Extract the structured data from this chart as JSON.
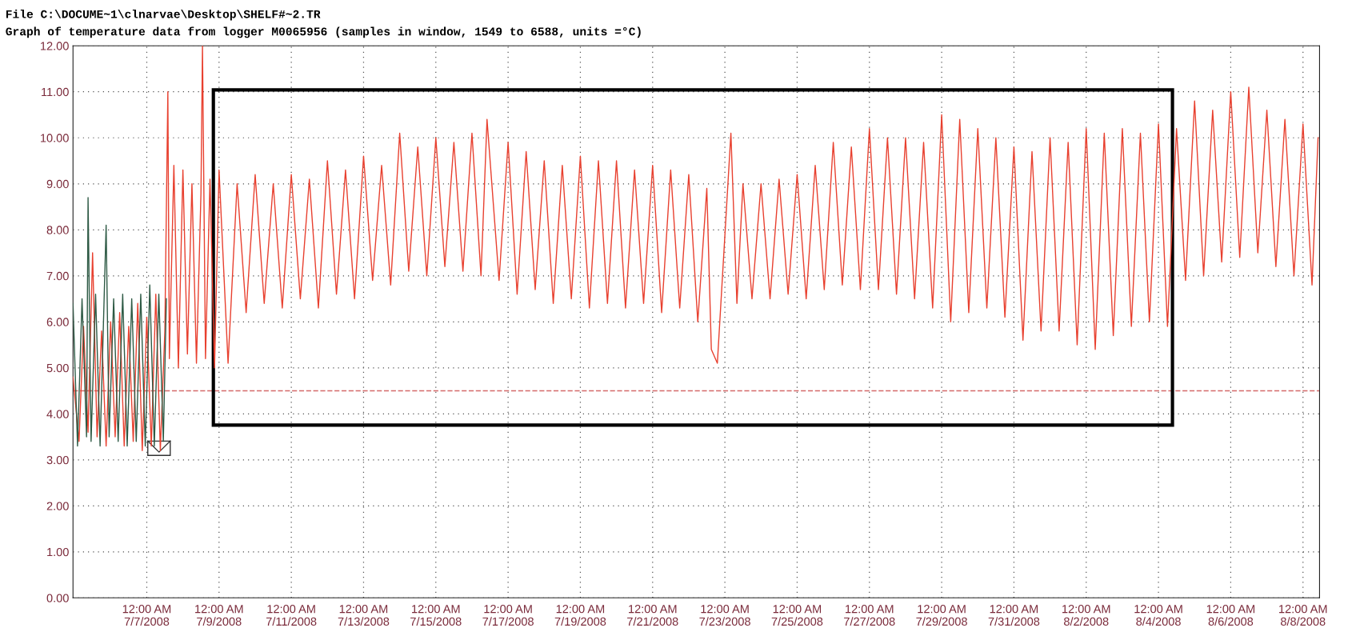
{
  "chart_data": {
    "type": "line",
    "title": "File C:\\DOCUME~1\\clnarvae\\Desktop\\SHELF#~2.TR",
    "subtitle": "Graph of temperature data from logger M0065956 (samples in window, 1549 to 6588, units =°C)",
    "xlim": [
      "2008-07-04T23:00",
      "2008-08-08T11:00"
    ],
    "ylim": [
      0,
      12
    ],
    "yticks": [
      {
        "value": 0,
        "label": "0.00"
      },
      {
        "value": 1,
        "label": "1.00"
      },
      {
        "value": 2,
        "label": "2.00"
      },
      {
        "value": 3,
        "label": "3.00"
      },
      {
        "value": 4,
        "label": "4.00"
      },
      {
        "value": 5,
        "label": "5.00"
      },
      {
        "value": 6,
        "label": "6.00"
      },
      {
        "value": 7,
        "label": "7.00"
      },
      {
        "value": 8,
        "label": "8.00"
      },
      {
        "value": 9,
        "label": "9.00"
      },
      {
        "value": 10,
        "label": "10.00"
      },
      {
        "value": 11,
        "label": "11.00"
      },
      {
        "value": 12,
        "label": "12.00"
      }
    ],
    "xticks": [
      {
        "value": "2008-07-07",
        "label": "12:00 AM\n7/7/2008"
      },
      {
        "value": "2008-07-09",
        "label": "12:00 AM\n7/9/2008"
      },
      {
        "value": "2008-07-11",
        "label": "12:00 AM\n7/11/2008"
      },
      {
        "value": "2008-07-13",
        "label": "12:00 AM\n7/13/2008"
      },
      {
        "value": "2008-07-15",
        "label": "12:00 AM\n7/15/2008"
      },
      {
        "value": "2008-07-17",
        "label": "12:00 AM\n7/17/2008"
      },
      {
        "value": "2008-07-19",
        "label": "12:00 AM\n7/19/2008"
      },
      {
        "value": "2008-07-21",
        "label": "12:00 AM\n7/21/2008"
      },
      {
        "value": "2008-07-23",
        "label": "12:00 AM\n7/23/2008"
      },
      {
        "value": "2008-07-25",
        "label": "12:00 AM\n7/25/2008"
      },
      {
        "value": "2008-07-27",
        "label": "12:00 AM\n7/27/2008"
      },
      {
        "value": "2008-07-29",
        "label": "12:00 AM\n7/29/2008"
      },
      {
        "value": "2008-07-31",
        "label": "12:00 AM\n7/31/2008"
      },
      {
        "value": "2008-08-02",
        "label": "12:00 AM\n8/2/2008"
      },
      {
        "value": "2008-08-04",
        "label": "12:00 AM\n8/4/2008"
      },
      {
        "value": "2008-08-06",
        "label": "12:00 AM\n8/6/2008"
      },
      {
        "value": "2008-08-08",
        "label": "12:00 AM\n8/8/2008"
      }
    ],
    "grid": true,
    "marker": "none",
    "line_style": "solid",
    "ref_lines": [
      {
        "axis": "y",
        "value": 4.5,
        "color": "#d46a6a",
        "line_style": "dashed"
      }
    ],
    "series": [
      {
        "color": "#e8402f",
        "x": [
          "2008-07-04T23:00",
          "2008-07-05T03:00",
          "2008-07-05T06:00",
          "2008-07-05T09:00",
          "2008-07-05T12:00",
          "2008-07-05T15:00",
          "2008-07-05T18:00",
          "2008-07-05T21:00",
          "2008-07-06T00:00",
          "2008-07-06T03:00",
          "2008-07-06T06:00",
          "2008-07-06T09:00",
          "2008-07-06T12:00",
          "2008-07-06T15:00",
          "2008-07-06T18:00",
          "2008-07-06T21:00",
          "2008-07-07T00:00",
          "2008-07-07T03:00",
          "2008-07-07T06:00",
          "2008-07-07T09:00",
          "2008-07-07T12:00",
          "2008-07-07T14:00",
          "2008-07-07T15:00",
          "2008-07-07T18:00",
          "2008-07-07T21:00",
          "2008-07-08T00:00",
          "2008-07-08T03:00",
          "2008-07-08T06:00",
          "2008-07-08T09:00",
          "2008-07-08T12:00",
          "2008-07-08T13:00",
          "2008-07-08T15:00",
          "2008-07-08T18:00",
          "2008-07-08T21:00",
          "2008-07-09T00:00",
          "2008-07-09T06:00",
          "2008-07-09T12:00",
          "2008-07-09T18:00",
          "2008-07-10T00:00",
          "2008-07-10T06:00",
          "2008-07-10T12:00",
          "2008-07-10T18:00",
          "2008-07-11T00:00",
          "2008-07-11T06:00",
          "2008-07-11T12:00",
          "2008-07-11T18:00",
          "2008-07-12T00:00",
          "2008-07-12T06:00",
          "2008-07-12T12:00",
          "2008-07-12T18:00",
          "2008-07-13T00:00",
          "2008-07-13T06:00",
          "2008-07-13T12:00",
          "2008-07-13T18:00",
          "2008-07-14T00:00",
          "2008-07-14T06:00",
          "2008-07-14T12:00",
          "2008-07-14T18:00",
          "2008-07-15T00:00",
          "2008-07-15T06:00",
          "2008-07-15T12:00",
          "2008-07-15T18:00",
          "2008-07-16T00:00",
          "2008-07-16T06:00",
          "2008-07-16T10:00",
          "2008-07-16T18:00",
          "2008-07-17T00:00",
          "2008-07-17T06:00",
          "2008-07-17T12:00",
          "2008-07-17T18:00",
          "2008-07-18T00:00",
          "2008-07-18T06:00",
          "2008-07-18T12:00",
          "2008-07-18T18:00",
          "2008-07-19T00:00",
          "2008-07-19T06:00",
          "2008-07-19T12:00",
          "2008-07-19T18:00",
          "2008-07-20T00:00",
          "2008-07-20T06:00",
          "2008-07-20T12:00",
          "2008-07-20T18:00",
          "2008-07-21T00:00",
          "2008-07-21T06:00",
          "2008-07-21T12:00",
          "2008-07-21T18:00",
          "2008-07-22T00:00",
          "2008-07-22T06:00",
          "2008-07-22T12:00",
          "2008-07-22T15:00",
          "2008-07-22T19:00",
          "2008-07-23T04:00",
          "2008-07-23T08:00",
          "2008-07-23T12:00",
          "2008-07-23T18:00",
          "2008-07-24T00:00",
          "2008-07-24T06:00",
          "2008-07-24T12:00",
          "2008-07-24T18:00",
          "2008-07-25T00:00",
          "2008-07-25T06:00",
          "2008-07-25T12:00",
          "2008-07-25T18:00",
          "2008-07-26T00:00",
          "2008-07-26T06:00",
          "2008-07-26T12:00",
          "2008-07-26T18:00",
          "2008-07-27T00:00",
          "2008-07-27T06:00",
          "2008-07-27T12:00",
          "2008-07-27T18:00",
          "2008-07-28T00:00",
          "2008-07-28T06:00",
          "2008-07-28T12:00",
          "2008-07-28T18:00",
          "2008-07-29T00:00",
          "2008-07-29T06:00",
          "2008-07-29T12:00",
          "2008-07-29T18:00",
          "2008-07-30T00:00",
          "2008-07-30T06:00",
          "2008-07-30T12:00",
          "2008-07-30T18:00",
          "2008-07-31T00:00",
          "2008-07-31T06:00",
          "2008-07-31T12:00",
          "2008-07-31T18:00",
          "2008-08-01T00:00",
          "2008-08-01T06:00",
          "2008-08-01T12:00",
          "2008-08-01T18:00",
          "2008-08-02T00:00",
          "2008-08-02T06:00",
          "2008-08-02T12:00",
          "2008-08-02T18:00",
          "2008-08-03T00:00",
          "2008-08-03T06:00",
          "2008-08-03T12:00",
          "2008-08-03T18:00",
          "2008-08-04T00:00",
          "2008-08-04T06:00",
          "2008-08-04T12:00",
          "2008-08-04T18:00",
          "2008-08-05T00:00",
          "2008-08-05T06:00",
          "2008-08-05T12:00",
          "2008-08-05T18:00",
          "2008-08-06T00:00",
          "2008-08-06T06:00",
          "2008-08-06T12:00",
          "2008-08-06T18:00",
          "2008-08-07T00:00",
          "2008-08-07T06:00",
          "2008-08-07T12:00",
          "2008-08-07T18:00",
          "2008-08-08T00:00",
          "2008-08-08T06:00",
          "2008-08-08T10:00"
        ],
        "values": [
          4.8,
          3.4,
          5.9,
          3.6,
          7.5,
          3.5,
          5.8,
          3.3,
          6.0,
          3.5,
          6.2,
          3.3,
          5.9,
          3.4,
          6.4,
          3.2,
          6.1,
          3.3,
          6.6,
          3.2,
          5.8,
          11.0,
          5.2,
          9.4,
          5.0,
          9.3,
          5.3,
          9.0,
          5.1,
          8.8,
          12.0,
          5.2,
          9.1,
          5.0,
          9.3,
          5.1,
          9.0,
          6.2,
          9.2,
          6.4,
          9.0,
          6.3,
          9.2,
          6.5,
          9.1,
          6.3,
          9.5,
          6.6,
          9.3,
          6.5,
          9.6,
          6.9,
          9.4,
          6.8,
          10.1,
          7.1,
          9.8,
          7.0,
          10.0,
          7.2,
          9.9,
          7.1,
          10.1,
          7.0,
          10.4,
          6.9,
          9.9,
          6.6,
          9.7,
          6.7,
          9.5,
          6.4,
          9.4,
          6.5,
          9.6,
          6.3,
          9.5,
          6.4,
          9.5,
          6.3,
          9.3,
          6.4,
          9.4,
          6.2,
          9.3,
          6.3,
          9.2,
          6.0,
          8.9,
          5.4,
          5.1,
          10.1,
          6.4,
          9.0,
          6.5,
          9.0,
          6.5,
          9.1,
          6.6,
          9.2,
          6.5,
          9.4,
          6.7,
          9.9,
          6.8,
          9.8,
          6.7,
          10.2,
          6.7,
          10.0,
          6.6,
          10.0,
          6.5,
          9.9,
          6.3,
          10.5,
          6.0,
          10.4,
          6.2,
          10.2,
          6.3,
          10.0,
          6.1,
          9.8,
          5.6,
          9.7,
          5.8,
          10.0,
          5.8,
          9.9,
          5.5,
          10.2,
          5.4,
          10.1,
          5.7,
          10.2,
          5.9,
          10.1,
          6.0,
          10.3,
          5.9,
          10.2,
          6.9,
          10.8,
          7.0,
          10.6,
          7.3,
          11.0,
          7.4,
          11.1,
          7.5,
          10.6,
          7.2,
          10.4,
          7.0,
          10.3,
          6.8,
          10.0
        ]
      },
      {
        "color": "#2e5a45",
        "x": [
          "2008-07-04T23:00",
          "2008-07-05T02:00",
          "2008-07-05T05:00",
          "2008-07-05T08:00",
          "2008-07-05T09:00",
          "2008-07-05T11:00",
          "2008-07-05T14:00",
          "2008-07-05T17:00",
          "2008-07-05T21:00",
          "2008-07-05T23:00",
          "2008-07-06T02:00",
          "2008-07-06T05:00",
          "2008-07-06T08:00",
          "2008-07-06T11:00",
          "2008-07-06T14:00",
          "2008-07-06T17:00",
          "2008-07-06T20:00",
          "2008-07-06T23:00",
          "2008-07-07T02:00",
          "2008-07-07T05:00",
          "2008-07-07T08:00",
          "2008-07-07T11:00",
          "2008-07-07T13:00"
        ],
        "values": [
          6.4,
          3.3,
          6.5,
          3.5,
          8.7,
          3.4,
          6.6,
          3.3,
          8.1,
          3.5,
          6.5,
          3.4,
          6.6,
          3.3,
          6.5,
          3.4,
          6.6,
          3.3,
          6.8,
          3.3,
          6.6,
          3.4,
          6.5
        ]
      }
    ]
  }
}
